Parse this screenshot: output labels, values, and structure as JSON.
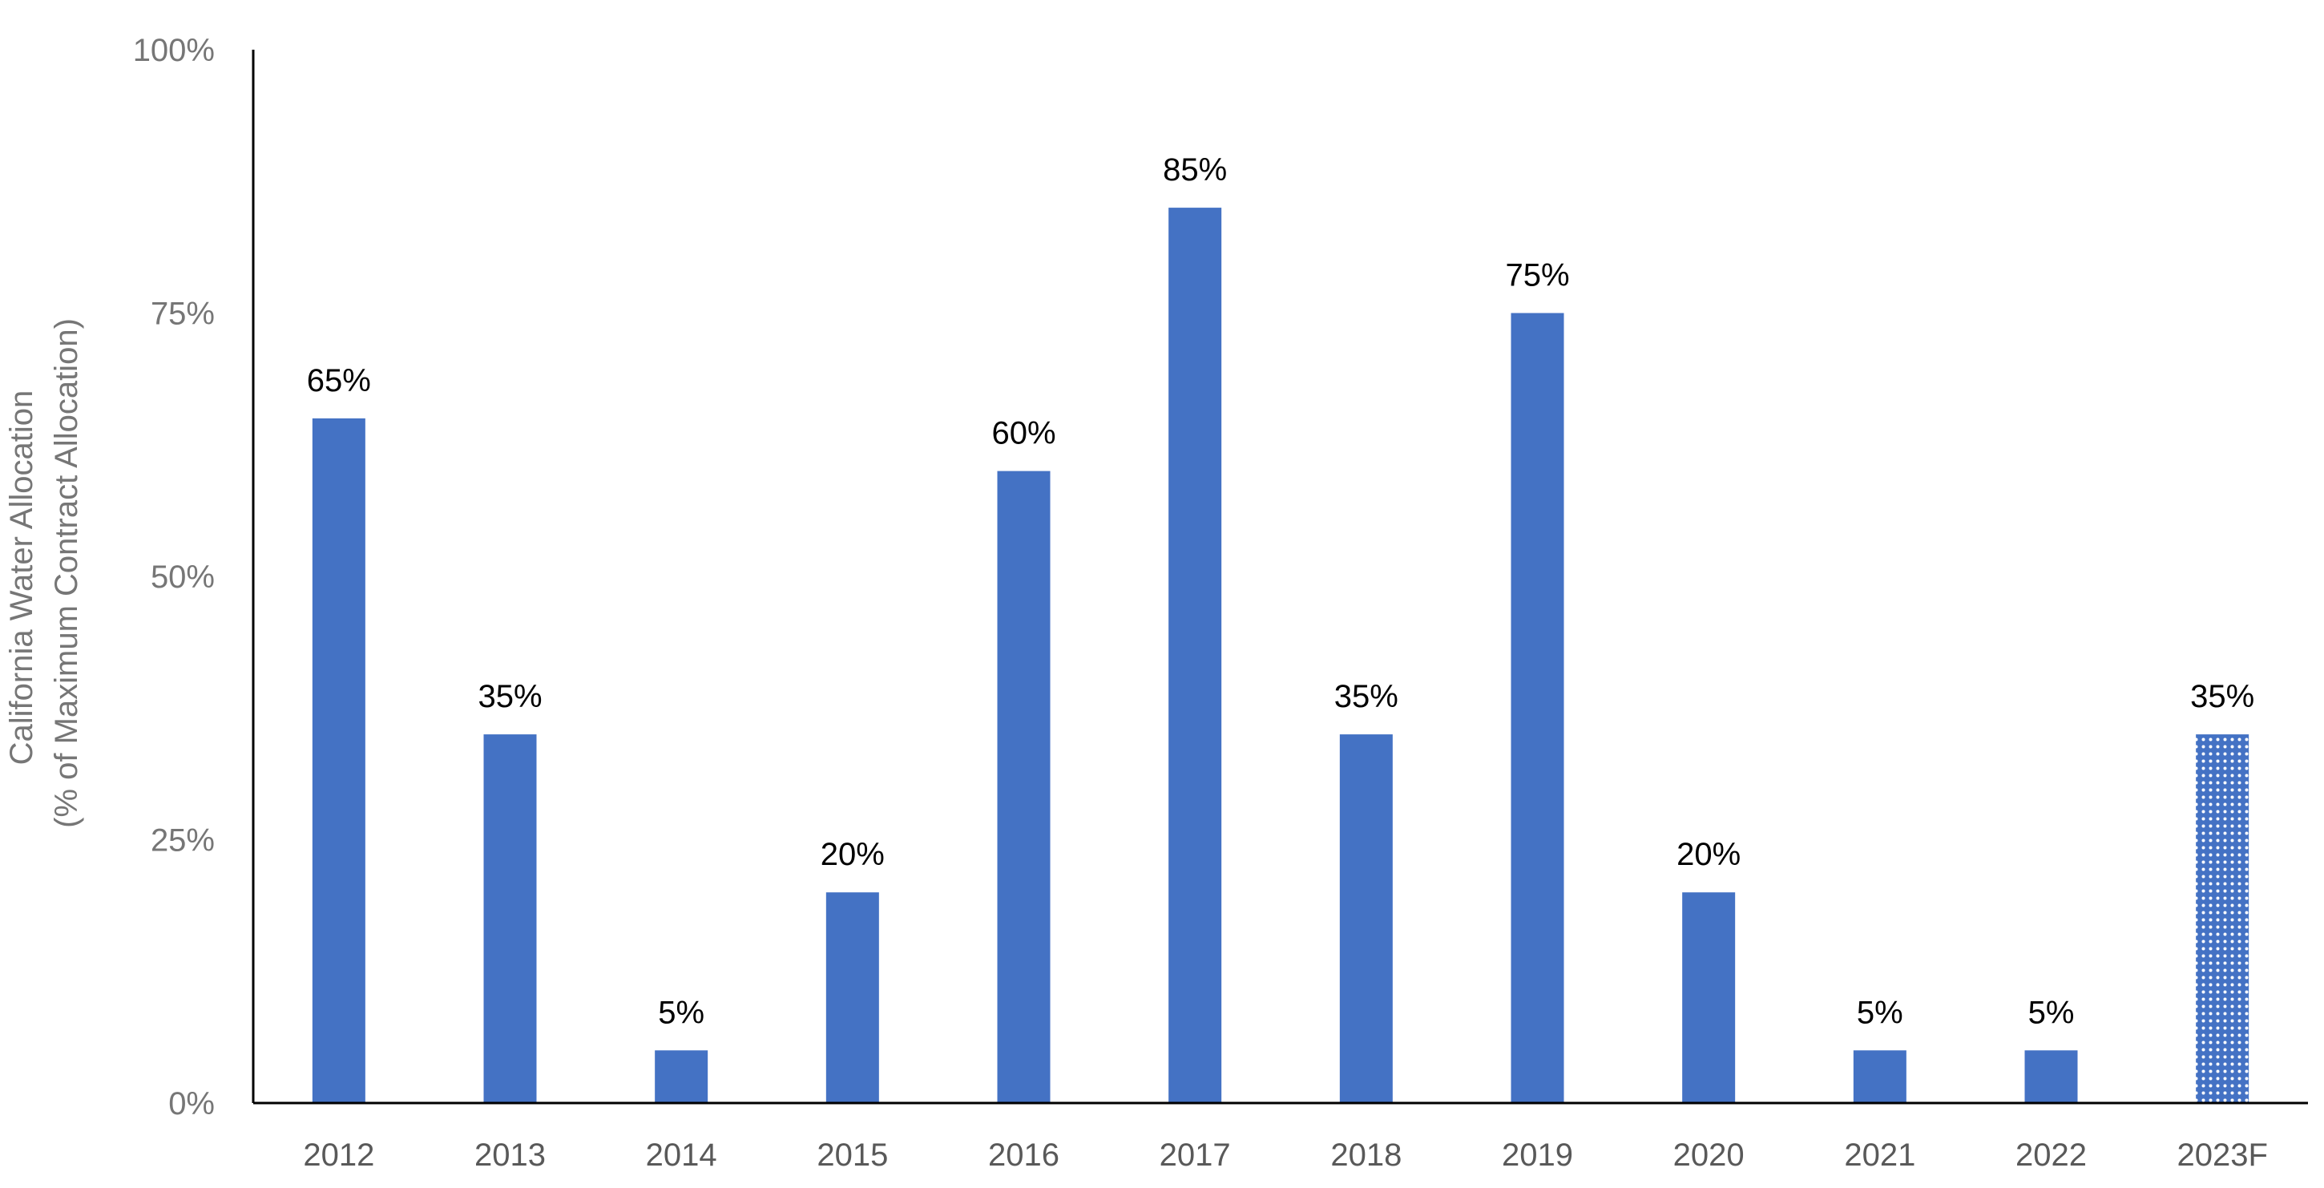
{
  "chart_data": {
    "type": "bar",
    "title": "",
    "xlabel": "",
    "ylabel_lines": [
      "California Water Allocation",
      "(% of Maximum Contract Allocation)"
    ],
    "categories": [
      "2012",
      "2013",
      "2014",
      "2015",
      "2016",
      "2017",
      "2018",
      "2019",
      "2020",
      "2021",
      "2022",
      "2023F"
    ],
    "values": [
      65,
      35,
      5,
      20,
      60,
      85,
      35,
      75,
      20,
      5,
      5,
      35
    ],
    "data_labels": [
      "65%",
      "35%",
      "5%",
      "20%",
      "60%",
      "85%",
      "35%",
      "75%",
      "20%",
      "5%",
      "5%",
      "35%"
    ],
    "forecast_categories": [
      "2023F"
    ],
    "ylim": [
      0,
      100
    ],
    "yticks": [
      0,
      25,
      50,
      75,
      100
    ],
    "ytick_labels": [
      "0%",
      "25%",
      "50%",
      "75%",
      "100%"
    ],
    "grid": false,
    "legend": "none",
    "bar_color": "#4472C4"
  }
}
